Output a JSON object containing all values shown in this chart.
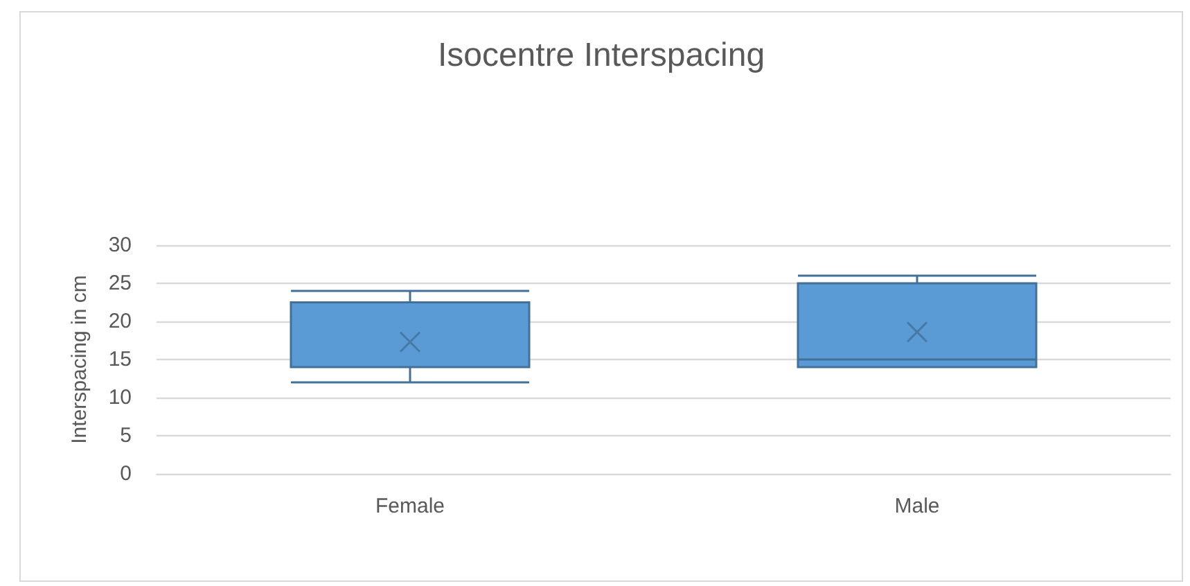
{
  "chart_data": {
    "type": "box",
    "title": "Isocentre Interspacing",
    "ylabel": "Interspacing in cm",
    "categories": [
      "Female",
      "Male"
    ],
    "series": [
      {
        "color": "#5b9bd5",
        "boxes": [
          {
            "low": 12,
            "q1": 14,
            "median": 14,
            "q3": 22.5,
            "high": 24,
            "mean": 17.3
          },
          {
            "low": 14,
            "q1": 14,
            "median": 15,
            "q3": 25,
            "high": 26,
            "mean": 18.6
          }
        ]
      }
    ],
    "ylim": [
      0,
      30
    ],
    "yticks": [
      0,
      5,
      10,
      15,
      20,
      25,
      30
    ],
    "grid": "y"
  }
}
